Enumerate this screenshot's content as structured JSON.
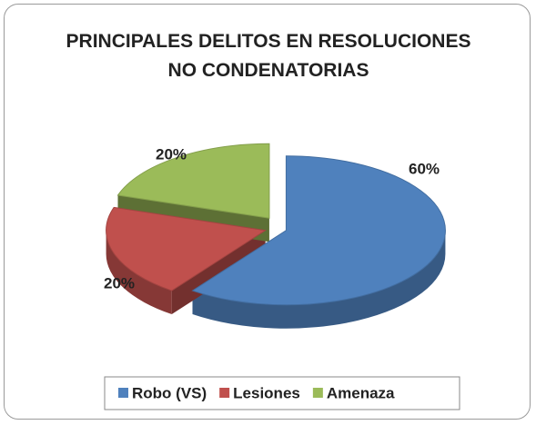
{
  "chart_data": {
    "type": "pie",
    "title": "PRINCIPALES DELITOS EN RESOLUCIONES NO CONDENATORIAS",
    "categories": [
      "Robo (VS)",
      "Lesiones",
      "Amenaza"
    ],
    "values": [
      60,
      20,
      20
    ],
    "value_labels": [
      "60%",
      "20%",
      "20%"
    ],
    "colors": [
      "#4f81bd",
      "#c0504d",
      "#9bbb59"
    ],
    "legend": "bottom"
  }
}
